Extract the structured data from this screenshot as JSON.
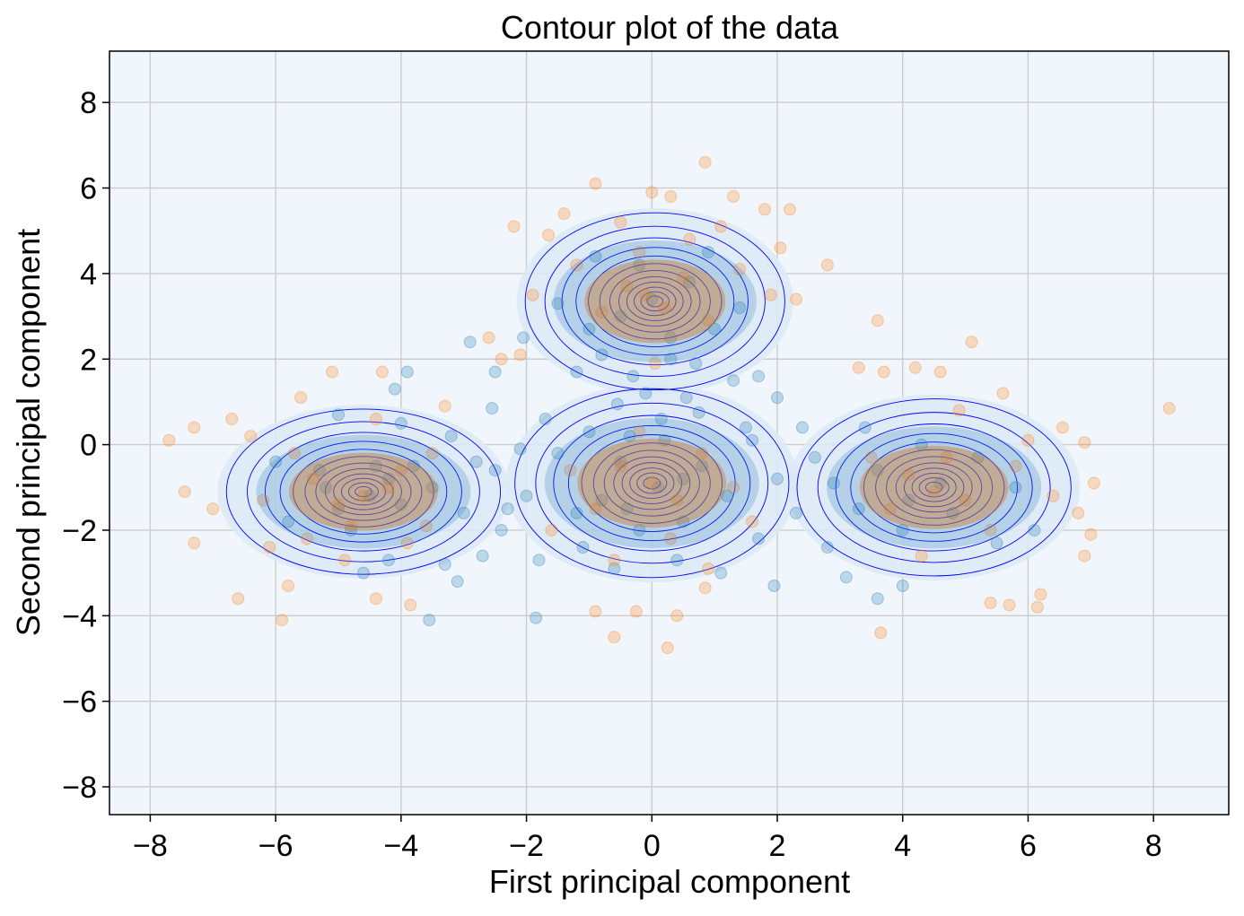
{
  "chart_data": {
    "type": "scatter",
    "title": "Contour plot of the data",
    "xlabel": "First principal component",
    "ylabel": "Second principal component",
    "xlim": [
      -8.65,
      9.2
    ],
    "ylim": [
      -8.65,
      9.2
    ],
    "xticks": [
      -8,
      -6,
      -4,
      -2,
      0,
      2,
      4,
      6,
      8
    ],
    "yticks": [
      -8,
      -6,
      -4,
      -2,
      0,
      2,
      4,
      6,
      8
    ],
    "xtick_labels": [
      "−8",
      "−6",
      "−4",
      "−2",
      "0",
      "2",
      "4",
      "6",
      "8"
    ],
    "ytick_labels": [
      "−8",
      "−6",
      "−4",
      "−2",
      "0",
      "2",
      "4",
      "6",
      "8"
    ],
    "grid": true,
    "legend": "none",
    "colors": {
      "background": "#f0f6fc",
      "grid": "#cccccc",
      "series_blue": "#1f77b4",
      "series_orange": "#ff7f0e",
      "contour_line": "#0000ff",
      "contour_fill": "#dce9f5"
    },
    "clusters": [
      {
        "center": [
          -4.6,
          -1.1
        ],
        "spread": [
          0.95,
          0.7
        ]
      },
      {
        "center": [
          0.0,
          -0.9
        ],
        "spread": [
          0.95,
          0.8
        ]
      },
      {
        "center": [
          0.05,
          3.35
        ],
        "spread": [
          0.9,
          0.75
        ]
      },
      {
        "center": [
          4.5,
          -1.0
        ],
        "spread": [
          0.95,
          0.75
        ]
      }
    ],
    "series": [
      {
        "color": "#1f77b4",
        "points": [
          [
            -4.5,
            -1.2
          ],
          [
            -4.2,
            -0.8
          ],
          [
            -5.0,
            -1.5
          ],
          [
            -3.8,
            -0.5
          ],
          [
            -4.8,
            -2.0
          ],
          [
            -3.5,
            -1.0
          ],
          [
            -4.0,
            0.5
          ],
          [
            -5.3,
            -0.6
          ],
          [
            -3.0,
            -1.6
          ],
          [
            -2.8,
            -0.4
          ],
          [
            -3.2,
            0.2
          ],
          [
            -4.1,
            1.3
          ],
          [
            -3.9,
            1.7
          ],
          [
            -3.55,
            -4.1
          ],
          [
            -3.1,
            -3.2
          ],
          [
            -2.5,
            -0.6
          ],
          [
            -2.3,
            -1.5
          ],
          [
            -2.0,
            -1.2
          ],
          [
            -1.5,
            -0.2
          ],
          [
            -1.2,
            -1.6
          ],
          [
            -1.8,
            -2.7
          ],
          [
            -1.85,
            -4.05
          ],
          [
            -2.4,
            -2.0
          ],
          [
            -1.0,
            0.3
          ],
          [
            -0.8,
            -1.3
          ],
          [
            -0.5,
            -0.4
          ],
          [
            -0.2,
            -2.0
          ],
          [
            0.2,
            0.1
          ],
          [
            0.5,
            -1.8
          ],
          [
            0.8,
            -0.5
          ],
          [
            1.2,
            -1.2
          ],
          [
            1.5,
            0.4
          ],
          [
            1.7,
            -2.2
          ],
          [
            2.0,
            -0.8
          ],
          [
            2.3,
            -1.6
          ],
          [
            2.6,
            -0.3
          ],
          [
            2.0,
            1.1
          ],
          [
            1.7,
            1.6
          ],
          [
            1.3,
            1.5
          ],
          [
            0.7,
            1.9
          ],
          [
            -0.3,
            1.6
          ],
          [
            -0.8,
            2.1
          ],
          [
            -1.2,
            1.7
          ],
          [
            0.3,
            2.5
          ],
          [
            -0.55,
            0.95
          ],
          [
            0.75,
            0.75
          ],
          [
            -2.9,
            2.4
          ],
          [
            -2.55,
            0.85
          ],
          [
            -2.5,
            1.7
          ],
          [
            -2.05,
            2.5
          ],
          [
            1.95,
            -3.3
          ],
          [
            1.1,
            -3.0
          ],
          [
            -0.6,
            -2.9
          ],
          [
            0.4,
            -2.7
          ],
          [
            -1.1,
            -2.4
          ],
          [
            2.9,
            -0.9
          ],
          [
            3.3,
            -1.5
          ],
          [
            3.6,
            -0.6
          ],
          [
            4.0,
            -2.0
          ],
          [
            4.3,
            0.0
          ],
          [
            4.8,
            -1.6
          ],
          [
            5.2,
            -0.3
          ],
          [
            5.5,
            -2.3
          ],
          [
            5.8,
            -1.0
          ],
          [
            6.1,
            -2.0
          ],
          [
            3.4,
            0.4
          ],
          [
            3.6,
            -3.6
          ],
          [
            4.0,
            -3.3
          ],
          [
            3.1,
            -3.1
          ],
          [
            2.8,
            -2.4
          ],
          [
            -5.8,
            -1.8
          ],
          [
            -6.0,
            -0.4
          ],
          [
            -4.6,
            -3.0
          ],
          [
            -5.0,
            0.7
          ],
          [
            -4.2,
            -2.7
          ],
          [
            -3.3,
            -2.8
          ],
          [
            -2.7,
            -2.6
          ],
          [
            0.0,
            3.4
          ],
          [
            -0.5,
            3.0
          ],
          [
            0.6,
            3.8
          ],
          [
            1.0,
            2.7
          ],
          [
            -1.0,
            2.7
          ],
          [
            -0.2,
            4.2
          ],
          [
            1.4,
            3.2
          ],
          [
            -1.5,
            3.3
          ],
          [
            0.9,
            4.5
          ],
          [
            -0.9,
            4.4
          ],
          [
            0.3,
            2.0
          ],
          [
            -0.1,
            1.2
          ],
          [
            0.15,
            0.6
          ],
          [
            -0.35,
            0.2
          ],
          [
            0.55,
            1.1
          ],
          [
            1.6,
            0.1
          ],
          [
            -1.7,
            0.6
          ],
          [
            -2.1,
            -0.1
          ],
          [
            2.4,
            0.4
          ],
          [
            -4.0,
            -1.4
          ],
          [
            -5.2,
            -1.0
          ],
          [
            4.6,
            -0.9
          ],
          [
            4.1,
            -1.3
          ],
          [
            0.1,
            -1.0
          ],
          [
            -0.4,
            -1.5
          ],
          [
            0.5,
            -0.8
          ],
          [
            -4.4,
            -0.5
          ]
        ]
      },
      {
        "color": "#ff7f0e",
        "points": [
          [
            -7.7,
            0.1
          ],
          [
            -7.3,
            0.4
          ],
          [
            -7.45,
            -1.1
          ],
          [
            -7.0,
            -1.5
          ],
          [
            -7.3,
            -2.3
          ],
          [
            -6.6,
            -3.6
          ],
          [
            -5.9,
            -4.1
          ],
          [
            -6.7,
            0.6
          ],
          [
            -5.1,
            1.7
          ],
          [
            -4.3,
            1.7
          ],
          [
            -5.6,
            1.1
          ],
          [
            -5.8,
            -3.3
          ],
          [
            -4.4,
            -3.6
          ],
          [
            -3.85,
            -3.75
          ],
          [
            -4.9,
            -2.7
          ],
          [
            -5.5,
            -2.2
          ],
          [
            -6.2,
            -1.3
          ],
          [
            -3.6,
            -1.9
          ],
          [
            -3.5,
            -0.2
          ],
          [
            0.85,
            6.6
          ],
          [
            -0.9,
            6.1
          ],
          [
            0.0,
            5.9
          ],
          [
            0.3,
            5.8
          ],
          [
            -1.4,
            5.4
          ],
          [
            1.3,
            5.8
          ],
          [
            1.8,
            5.5
          ],
          [
            2.2,
            5.5
          ],
          [
            2.8,
            4.2
          ],
          [
            -2.2,
            5.1
          ],
          [
            -1.9,
            3.5
          ],
          [
            -2.6,
            2.5
          ],
          [
            -2.1,
            2.1
          ],
          [
            1.9,
            3.5
          ],
          [
            2.3,
            3.4
          ],
          [
            3.6,
            2.9
          ],
          [
            5.1,
            2.4
          ],
          [
            8.25,
            0.85
          ],
          [
            7.05,
            -0.9
          ],
          [
            7.0,
            -2.1
          ],
          [
            6.8,
            -1.6
          ],
          [
            6.9,
            -2.6
          ],
          [
            6.2,
            -3.5
          ],
          [
            6.15,
            -3.8
          ],
          [
            5.7,
            -3.75
          ],
          [
            5.4,
            -3.7
          ],
          [
            3.65,
            -4.4
          ],
          [
            0.25,
            -4.75
          ],
          [
            -0.6,
            -4.5
          ],
          [
            -0.9,
            -3.9
          ],
          [
            0.4,
            -4.0
          ],
          [
            -0.25,
            -3.9
          ],
          [
            0.85,
            -3.35
          ],
          [
            3.3,
            1.8
          ],
          [
            3.7,
            1.7
          ],
          [
            4.2,
            1.8
          ],
          [
            4.6,
            1.7
          ],
          [
            5.6,
            1.2
          ],
          [
            6.55,
            0.4
          ],
          [
            6.9,
            0.05
          ],
          [
            -0.1,
            3.5
          ],
          [
            0.2,
            3.2
          ],
          [
            -0.4,
            3.7
          ],
          [
            0.5,
            3.9
          ],
          [
            -0.8,
            3.1
          ],
          [
            0.9,
            2.9
          ],
          [
            -0.2,
            4.5
          ],
          [
            0.6,
            4.8
          ],
          [
            -1.2,
            4.2
          ],
          [
            1.4,
            4.1
          ],
          [
            -4.6,
            -1.2
          ],
          [
            -4.2,
            -1.0
          ],
          [
            -5.0,
            -1.4
          ],
          [
            -4.0,
            -0.6
          ],
          [
            -5.4,
            -0.8
          ],
          [
            -4.8,
            -1.9
          ],
          [
            -3.9,
            -2.3
          ],
          [
            -5.7,
            -0.2
          ],
          [
            -4.4,
            0.6
          ],
          [
            4.5,
            -1.1
          ],
          [
            4.1,
            -0.7
          ],
          [
            5.0,
            -1.3
          ],
          [
            4.7,
            -0.3
          ],
          [
            3.8,
            -1.5
          ],
          [
            5.4,
            -2.0
          ],
          [
            4.3,
            -2.6
          ],
          [
            5.8,
            -0.5
          ],
          [
            3.5,
            -0.3
          ],
          [
            4.9,
            0.8
          ],
          [
            0.0,
            -0.9
          ],
          [
            -0.5,
            -0.5
          ],
          [
            0.4,
            -1.3
          ],
          [
            -0.9,
            -1.5
          ],
          [
            0.8,
            -0.2
          ],
          [
            -0.2,
            0.3
          ],
          [
            0.3,
            -2.2
          ],
          [
            -1.3,
            -0.6
          ],
          [
            1.3,
            -1.0
          ],
          [
            -0.6,
            -2.7
          ],
          [
            0.9,
            -2.9
          ],
          [
            1.6,
            -1.8
          ],
          [
            -1.6,
            -2.0
          ],
          [
            6.0,
            0.1
          ],
          [
            6.4,
            -1.2
          ],
          [
            -6.1,
            -2.4
          ],
          [
            -6.4,
            0.2
          ],
          [
            -3.3,
            0.9
          ],
          [
            1.1,
            5.1
          ],
          [
            -0.5,
            5.2
          ],
          [
            -2.4,
            2.0
          ],
          [
            2.05,
            4.6
          ],
          [
            -1.65,
            4.9
          ],
          [
            0.05,
            1.9
          ]
        ]
      }
    ]
  }
}
